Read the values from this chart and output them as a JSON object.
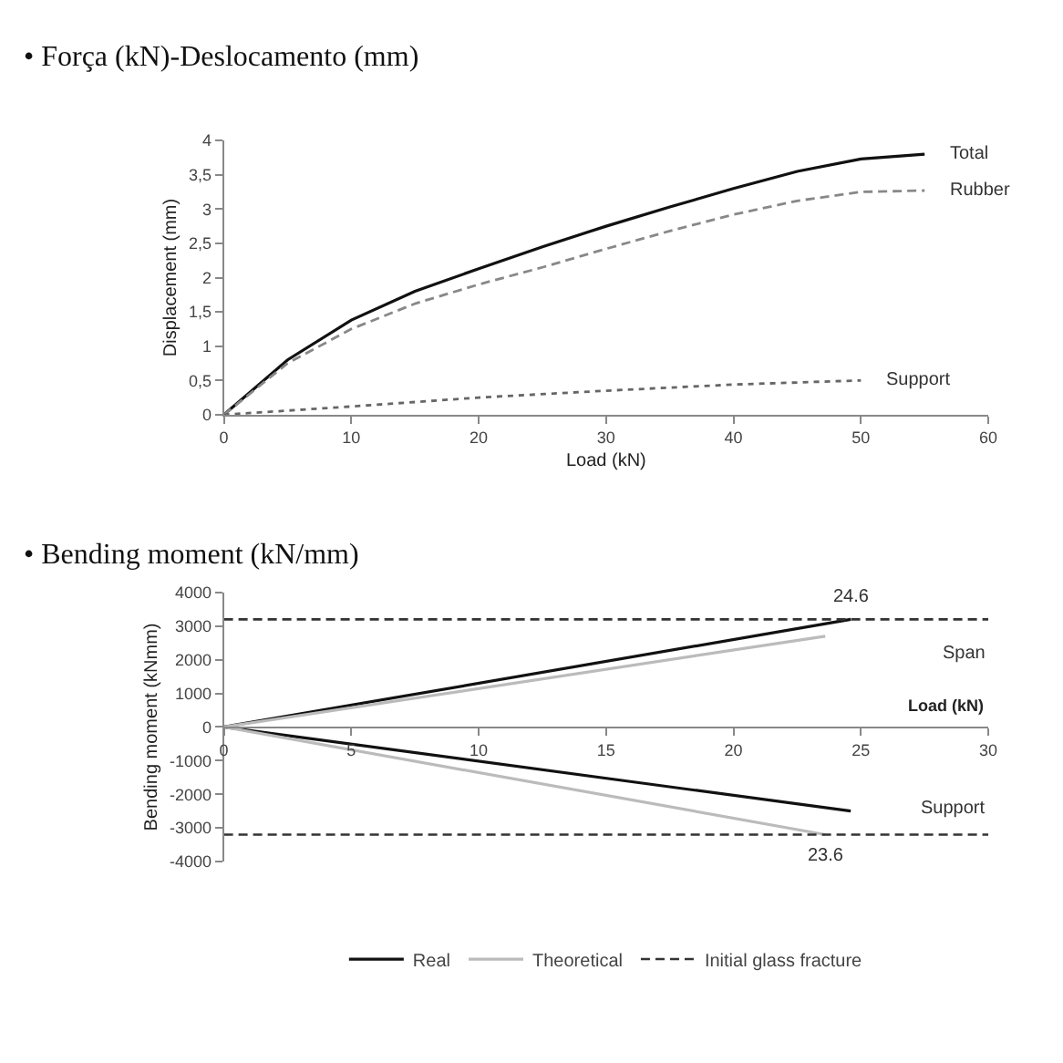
{
  "chart_data": [
    {
      "type": "line",
      "title": "• Força (kN)-Deslocamento (mm)",
      "xlabel": "Load (kN)",
      "ylabel": "Displacement (mm)",
      "xlim": [
        0,
        60
      ],
      "xticks": [
        0,
        10,
        20,
        30,
        40,
        50,
        60
      ],
      "ylim": [
        0,
        4
      ],
      "yticks": [
        0,
        {
          "value": 0.5,
          "label": "0,5"
        },
        1,
        {
          "value": 1.5,
          "label": "1,5"
        },
        2,
        {
          "value": 2.5,
          "label": "2,5"
        },
        3,
        {
          "value": 3.5,
          "label": "3,5"
        },
        4
      ],
      "legend": false,
      "marker": "none",
      "series": [
        {
          "name": "Total",
          "color": "#111111",
          "line_style": "solid",
          "x": [
            0,
            5,
            10,
            15,
            20,
            25,
            30,
            35,
            40,
            45,
            50,
            55
          ],
          "values": [
            0,
            0.8,
            1.38,
            1.8,
            2.13,
            2.45,
            2.75,
            3.03,
            3.3,
            3.55,
            3.73,
            3.8
          ]
        },
        {
          "name": "Rubber",
          "color": "#888888",
          "line_style": "dashed",
          "x": [
            0,
            5,
            10,
            15,
            20,
            25,
            30,
            35,
            40,
            45,
            50,
            55
          ],
          "values": [
            0,
            0.75,
            1.25,
            1.62,
            1.9,
            2.15,
            2.42,
            2.68,
            2.92,
            3.12,
            3.25,
            3.27
          ]
        },
        {
          "name": "Support",
          "color": "#666666",
          "line_style": "dotted",
          "x": [
            0,
            10,
            20,
            30,
            40,
            50
          ],
          "values": [
            0,
            0.12,
            0.25,
            0.35,
            0.44,
            0.5
          ]
        }
      ]
    },
    {
      "type": "line",
      "title": "• Bending moment (kN/mm)",
      "xlabel": "Load (kN)",
      "ylabel": "Bending moment (kNmm)",
      "xlim": [
        0,
        30
      ],
      "xticks": [
        0,
        5,
        10,
        15,
        20,
        25,
        30
      ],
      "ylim": [
        -4000,
        4000
      ],
      "yticks": [
        -4000,
        -3000,
        -2000,
        -1000,
        0,
        1000,
        2000,
        3000,
        4000
      ],
      "legend": "bottom",
      "marker": "none",
      "series": [
        {
          "name": "Real",
          "color": "#111111",
          "line_style": "solid",
          "x": [
            0,
            24.6
          ],
          "values": [
            0,
            3200
          ]
        },
        {
          "color": "#111111",
          "line_style": "solid",
          "x": [
            0,
            24.6
          ],
          "values": [
            0,
            -2500
          ]
        },
        {
          "name": "Theoretical",
          "color": "#bbbbbb",
          "line_style": "solid",
          "x": [
            0,
            23.6
          ],
          "values": [
            0,
            2700
          ]
        },
        {
          "color": "#bbbbbb",
          "line_style": "solid",
          "x": [
            0,
            23.6
          ],
          "values": [
            0,
            -3200
          ]
        }
      ],
      "ref_lines": [
        {
          "axis": "y",
          "value": 3200,
          "label": "Initial glass fracture",
          "color": "#333333",
          "line_style": "dashed"
        },
        {
          "axis": "y",
          "value": -3200,
          "color": "#333333",
          "line_style": "dashed"
        }
      ],
      "annotations": [
        {
          "text": "24.6",
          "x": 24.6,
          "y": 3200
        },
        {
          "text": "23.6",
          "x": 23.6,
          "y": -3200
        },
        "Span",
        "Support"
      ]
    }
  ]
}
